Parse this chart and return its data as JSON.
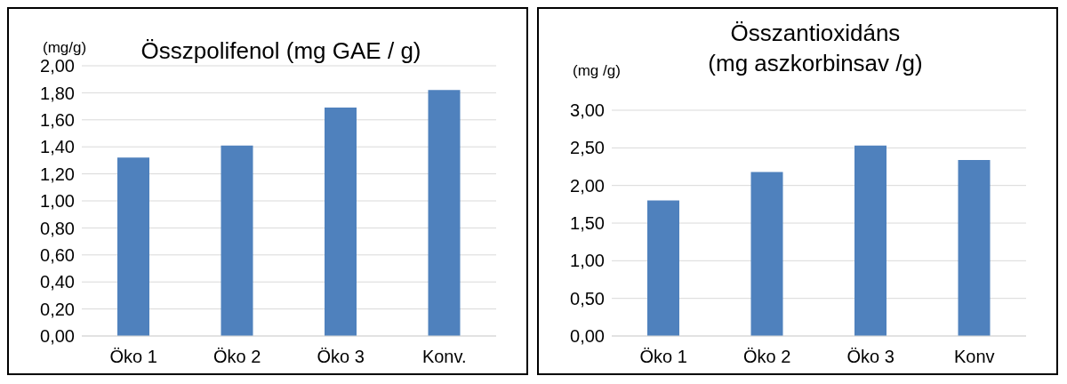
{
  "chart_data": [
    {
      "type": "bar",
      "title": "Összpolifenol (mg GAE / g)",
      "ylabel": "(mg/g)",
      "categories": [
        "Öko 1",
        "Öko 2",
        "Öko 3",
        "Konv."
      ],
      "values": [
        1.32,
        1.41,
        1.69,
        1.82
      ],
      "color": "#4f81bd",
      "ylim": [
        0,
        2
      ],
      "yticks": [
        {
          "value": 0,
          "label": "0,00"
        },
        {
          "value": 0.2,
          "label": "0,20"
        },
        {
          "value": 0.4,
          "label": "0,40"
        },
        {
          "value": 0.6,
          "label": "0,60"
        },
        {
          "value": 0.8,
          "label": "0,80"
        },
        {
          "value": 1,
          "label": "1,00"
        },
        {
          "value": 1.2,
          "label": "1,20"
        },
        {
          "value": 1.4,
          "label": "1,40"
        },
        {
          "value": 1.6,
          "label": "1,60"
        },
        {
          "value": 1.8,
          "label": "1,80"
        },
        {
          "value": 2,
          "label": "2,00"
        }
      ],
      "grid": "y"
    },
    {
      "type": "bar",
      "title": "Összantioxidáns\n(mg aszkorbinsav /g)",
      "ylabel": "(mg /g)",
      "categories": [
        "Öko 1",
        "Öko 2",
        "Öko 3",
        "Konv"
      ],
      "values": [
        1.8,
        2.18,
        2.53,
        2.34
      ],
      "color": "#4f81bd",
      "ylim": [
        0,
        3
      ],
      "yticks": [
        {
          "value": 0,
          "label": "0,00"
        },
        {
          "value": 0.5,
          "label": "0,50"
        },
        {
          "value": 1,
          "label": "1,00"
        },
        {
          "value": 1.5,
          "label": "1,50"
        },
        {
          "value": 2,
          "label": "2,00"
        },
        {
          "value": 2.5,
          "label": "2,50"
        },
        {
          "value": 3,
          "label": "3,00"
        }
      ],
      "grid": "y"
    }
  ]
}
